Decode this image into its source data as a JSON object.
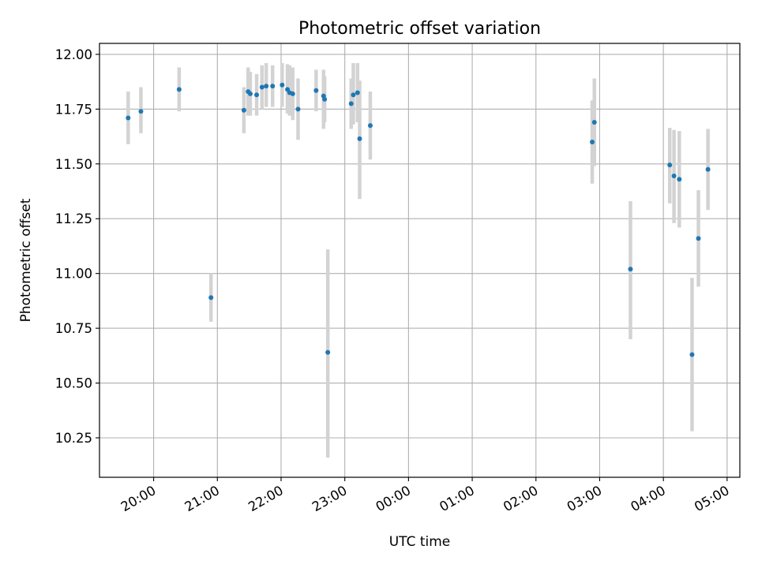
{
  "chart_data": {
    "type": "scatter",
    "title": "Photometric offset variation",
    "xlabel": "UTC time",
    "ylabel": "Photometric offset",
    "grid": true,
    "x_axis": "time",
    "x_ticks": [
      "20:00",
      "21:00",
      "22:00",
      "23:00",
      "00:00",
      "01:00",
      "02:00",
      "03:00",
      "04:00",
      "05:00"
    ],
    "xlim": [
      "19:09",
      "05:12"
    ],
    "y_ticks": [
      "10.25",
      "10.50",
      "10.75",
      "11.00",
      "11.25",
      "11.50",
      "11.75",
      "12.00"
    ],
    "ylim": [
      10.07,
      12.05
    ],
    "point_color": "#1f77b4",
    "error_color": "#d3d3d3",
    "points": [
      {
        "x": "19:36",
        "y": 11.71,
        "low": 11.59,
        "high": 11.83
      },
      {
        "x": "19:48",
        "y": 11.74,
        "low": 11.64,
        "high": 11.85
      },
      {
        "x": "20:24",
        "y": 11.84,
        "low": 11.74,
        "high": 11.94
      },
      {
        "x": "20:54",
        "y": 10.89,
        "low": 10.78,
        "high": 11.0
      },
      {
        "x": "21:25",
        "y": 11.745,
        "low": 11.64,
        "high": 11.85
      },
      {
        "x": "21:29",
        "y": 11.83,
        "low": 11.72,
        "high": 11.94
      },
      {
        "x": "21:31",
        "y": 11.82,
        "low": 11.72,
        "high": 11.92
      },
      {
        "x": "21:37",
        "y": 11.815,
        "low": 11.72,
        "high": 11.91
      },
      {
        "x": "21:42",
        "y": 11.85,
        "low": 11.75,
        "high": 11.95
      },
      {
        "x": "21:46",
        "y": 11.855,
        "low": 11.76,
        "high": 11.96
      },
      {
        "x": "21:52",
        "y": 11.855,
        "low": 11.76,
        "high": 11.95
      },
      {
        "x": "22:01",
        "y": 11.86,
        "low": 11.76,
        "high": 11.96
      },
      {
        "x": "22:06",
        "y": 11.84,
        "low": 11.73,
        "high": 11.955
      },
      {
        "x": "22:08",
        "y": 11.825,
        "low": 11.72,
        "high": 11.95
      },
      {
        "x": "22:11",
        "y": 11.82,
        "low": 11.7,
        "high": 11.94
      },
      {
        "x": "22:16",
        "y": 11.75,
        "low": 11.61,
        "high": 11.89
      },
      {
        "x": "22:33",
        "y": 11.835,
        "low": 11.74,
        "high": 11.93
      },
      {
        "x": "22:40",
        "y": 11.81,
        "low": 11.66,
        "high": 11.93
      },
      {
        "x": "22:41",
        "y": 11.795,
        "low": 11.69,
        "high": 11.9
      },
      {
        "x": "22:44",
        "y": 10.64,
        "low": 10.16,
        "high": 11.11
      },
      {
        "x": "23:06",
        "y": 11.775,
        "low": 11.66,
        "high": 11.89
      },
      {
        "x": "23:08",
        "y": 11.815,
        "low": 11.68,
        "high": 11.96
      },
      {
        "x": "23:12",
        "y": 11.825,
        "low": 11.69,
        "high": 11.96
      },
      {
        "x": "23:14",
        "y": 11.615,
        "low": 11.34,
        "high": 11.88
      },
      {
        "x": "23:24",
        "y": 11.675,
        "low": 11.52,
        "high": 11.83
      },
      {
        "x": "02:53",
        "y": 11.6,
        "low": 11.41,
        "high": 11.79
      },
      {
        "x": "02:55",
        "y": 11.69,
        "low": 11.49,
        "high": 11.89
      },
      {
        "x": "03:29",
        "y": 11.02,
        "low": 10.7,
        "high": 11.33
      },
      {
        "x": "04:06",
        "y": 11.495,
        "low": 11.32,
        "high": 11.665
      },
      {
        "x": "04:10",
        "y": 11.445,
        "low": 11.23,
        "high": 11.655
      },
      {
        "x": "04:15",
        "y": 11.43,
        "low": 11.21,
        "high": 11.65
      },
      {
        "x": "04:27",
        "y": 10.63,
        "low": 10.28,
        "high": 10.98
      },
      {
        "x": "04:33",
        "y": 11.16,
        "low": 10.94,
        "high": 11.38
      },
      {
        "x": "04:42",
        "y": 11.475,
        "low": 11.29,
        "high": 11.66
      }
    ]
  }
}
